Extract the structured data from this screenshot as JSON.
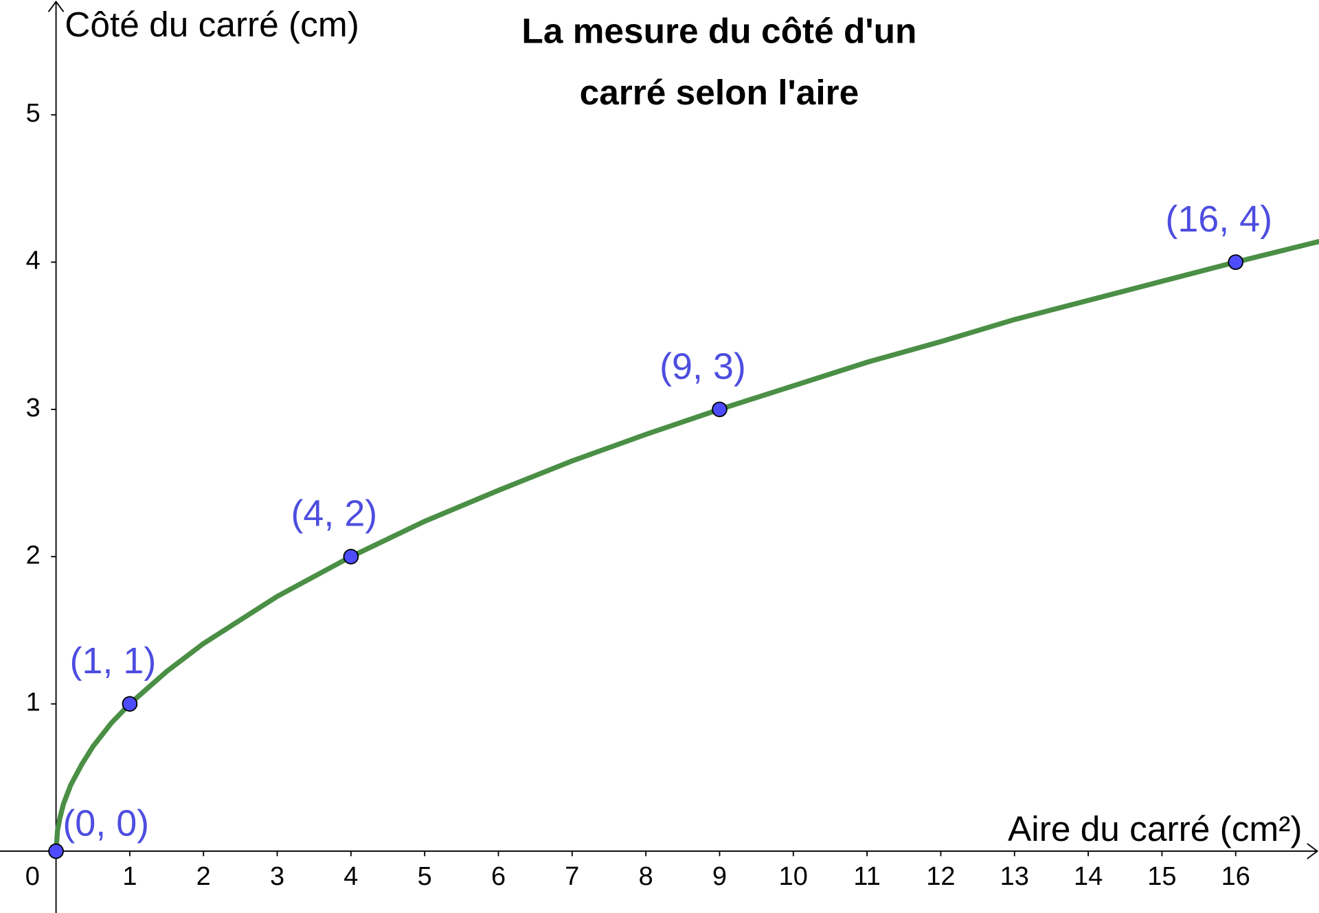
{
  "chart_data": {
    "type": "line",
    "title": [
      "La mesure du côté d'un",
      "carré selon l'aire"
    ],
    "x_label": "Aire du carré (cm²)",
    "y_label": "Côté du carré (cm)",
    "xlim": [
      -0.76,
      17.13
    ],
    "ylim": [
      -0.42,
      5.78
    ],
    "xticks": [
      0,
      1,
      2,
      3,
      4,
      5,
      6,
      7,
      8,
      9,
      10,
      11,
      12,
      13,
      14,
      15,
      16
    ],
    "yticks": [
      1,
      2,
      3,
      4,
      5
    ],
    "grid": false,
    "series": [
      {
        "type": "line",
        "color": "#4a8f45",
        "x": [
          0,
          0.02,
          0.05,
          0.1,
          0.2,
          0.35,
          0.5,
          0.75,
          1,
          1.5,
          2,
          3,
          4,
          5,
          6,
          7,
          8,
          9,
          10,
          11,
          12,
          13,
          14,
          15,
          16,
          17.13
        ],
        "values": [
          0,
          0.14,
          0.22,
          0.32,
          0.45,
          0.59,
          0.71,
          0.87,
          1,
          1.22,
          1.41,
          1.73,
          2,
          2.24,
          2.45,
          2.65,
          2.83,
          3,
          3.16,
          3.32,
          3.46,
          3.61,
          3.74,
          3.87,
          4,
          4.14
        ]
      },
      {
        "type": "scatter",
        "color": "#4d4dff",
        "label_color": "#4d4de0",
        "x": [
          0,
          1,
          4,
          9,
          16
        ],
        "values": [
          0,
          1,
          2,
          3,
          4
        ],
        "labels": [
          "(0, 0)",
          "(1, 1)",
          "(4, 2)",
          "(9, 3)",
          "(16, 4)"
        ]
      }
    ]
  }
}
